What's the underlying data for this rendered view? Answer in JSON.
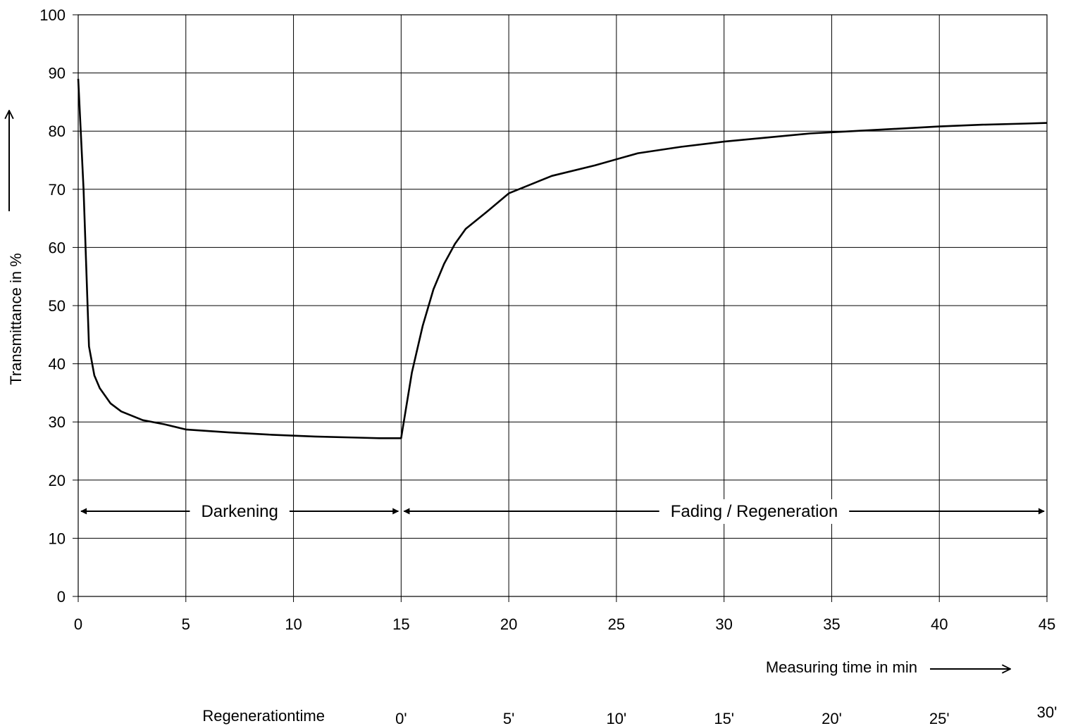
{
  "chart_data": {
    "type": "line",
    "title": "",
    "xlabel": "Measuring time in min",
    "ylabel": "Transmittance in %",
    "xlim": [
      0,
      45
    ],
    "ylim": [
      0,
      100
    ],
    "grid": true,
    "x_ticks": [
      0,
      5,
      10,
      15,
      20,
      25,
      30,
      35,
      40,
      45
    ],
    "y_ticks": [
      0,
      10,
      20,
      30,
      40,
      50,
      60,
      70,
      80,
      90,
      100
    ],
    "series": [
      {
        "x": [
          0,
          0.25,
          0.5,
          0.75,
          1,
          1.5,
          2,
          3,
          4,
          5,
          7,
          9,
          11,
          13,
          14,
          15,
          15.5,
          16,
          16.5,
          17,
          17.5,
          18,
          19,
          20,
          22,
          24,
          26,
          28,
          30,
          32,
          34,
          36,
          38,
          40,
          42,
          44,
          45
        ],
        "y": [
          89,
          70,
          43,
          38,
          35.8,
          33.2,
          31.8,
          30.3,
          29.6,
          28.7,
          28.2,
          27.8,
          27.5,
          27.3,
          27.2,
          27.2,
          38.5,
          46.5,
          52.8,
          57.2,
          60.6,
          63.2,
          66.2,
          69.3,
          72.3,
          74.1,
          76.2,
          77.3,
          78.2,
          78.9,
          79.6,
          80,
          80.4,
          80.8,
          81.1,
          81.3,
          81.4
        ]
      }
    ],
    "annotations": [
      {
        "text": "Darkening",
        "from_x": 0,
        "to_x": 15,
        "y": 15.5
      },
      {
        "text": "Fading / Regeneration",
        "from_x": 15,
        "to_x": 45,
        "y": 15.5
      }
    ],
    "secondary_axis": {
      "label": "Regenerationtime",
      "labels": [
        "0'",
        "5'",
        "10'",
        "15'",
        "20'",
        "25'",
        "30'"
      ],
      "x_positions": [
        15,
        20,
        25,
        30,
        35,
        40,
        45
      ]
    }
  }
}
